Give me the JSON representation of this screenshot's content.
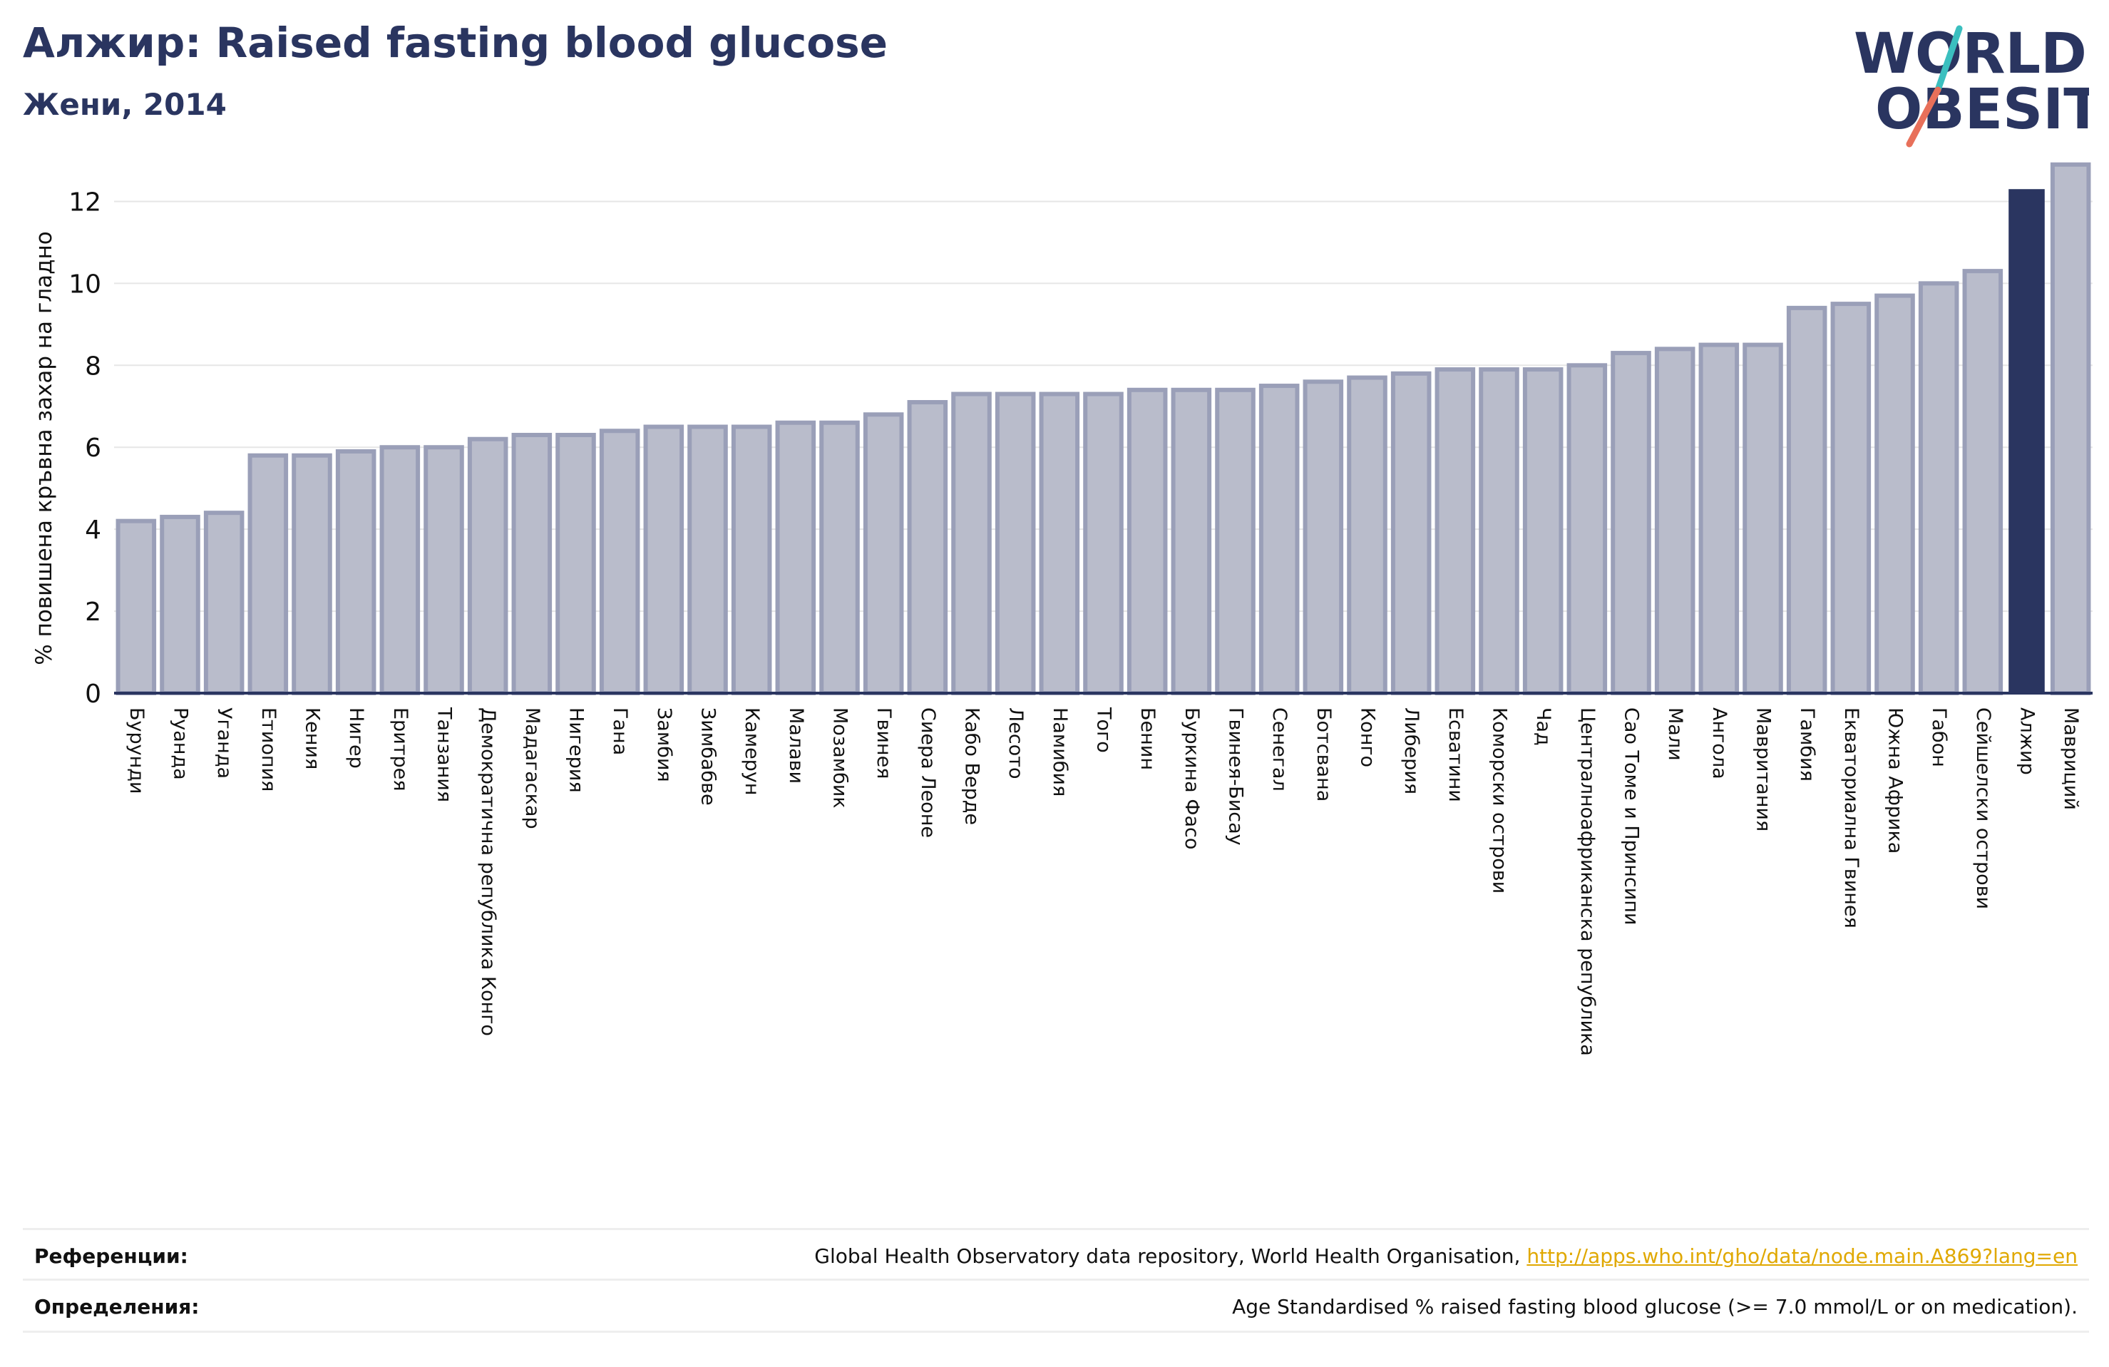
{
  "header": {
    "title": "Алжир: Raised fasting blood glucose",
    "subtitle": "Жени, 2014"
  },
  "logo": {
    "line1": "WORLD",
    "line2": "OBESITY",
    "accent_teal": "#3bbfbf",
    "accent_red": "#e8705a"
  },
  "colors": {
    "bar_fill": "#b9bccb",
    "bar_stroke": "#9a9fb8",
    "highlight": "#2a3560",
    "axis": "#2a3560",
    "grid": "#e6e6e6"
  },
  "chart_data": {
    "type": "bar",
    "ylabel": "% повишена кръвна захар на гладно",
    "ylim": [
      0,
      13
    ],
    "yticks": [
      0,
      2,
      4,
      6,
      8,
      10,
      12
    ],
    "grid": true,
    "highlight_category": "Алжир",
    "categories": [
      "Бурунди",
      "Руанда",
      "Уганда",
      "Етиопия",
      "Кения",
      "Нигер",
      "Еритрея",
      "Танзания",
      "Демократична република Конго",
      "Мадагаскар",
      "Нигерия",
      "Гана",
      "Замбия",
      "Зимбабве",
      "Камерун",
      "Малави",
      "Мозамбик",
      "Гвинея",
      "Сиера Леоне",
      "Кабо Верде",
      "Лесото",
      "Намибия",
      "Того",
      "Бенин",
      "Буркина Фасо",
      "Гвинея-Бисау",
      "Сенегал",
      "Ботсвана",
      "Конго",
      "Либерия",
      "Есватини",
      "Коморски острови",
      "Чад",
      "Централноафриканска република",
      "Сао Томе и Принсипи",
      "Мали",
      "Ангола",
      "Мавритания",
      "Гамбия",
      "Екваториална Гвинея",
      "Южна Африка",
      "Габон",
      "Сейшелски острови",
      "Алжир",
      "Мавриций"
    ],
    "values": [
      4.2,
      4.3,
      4.4,
      5.8,
      5.8,
      5.9,
      6.0,
      6.0,
      6.2,
      6.3,
      6.3,
      6.4,
      6.5,
      6.5,
      6.5,
      6.6,
      6.6,
      6.8,
      7.1,
      7.3,
      7.3,
      7.3,
      7.3,
      7.4,
      7.4,
      7.4,
      7.5,
      7.6,
      7.7,
      7.8,
      7.9,
      7.9,
      7.9,
      8.0,
      8.3,
      8.4,
      8.5,
      8.5,
      9.4,
      9.5,
      9.7,
      10.0,
      10.3,
      12.3,
      12.9
    ]
  },
  "footer": {
    "references_label": "Референции:",
    "references_text": "Global Health Observatory data repository, World Health Organisation, ",
    "references_link": "http://apps.who.int/gho/data/node.main.A869?lang=en",
    "definitions_label": "Определения:",
    "definitions_text": "Age Standardised % raised fasting blood glucose (>= 7.0 mmol/L or on medication)."
  }
}
